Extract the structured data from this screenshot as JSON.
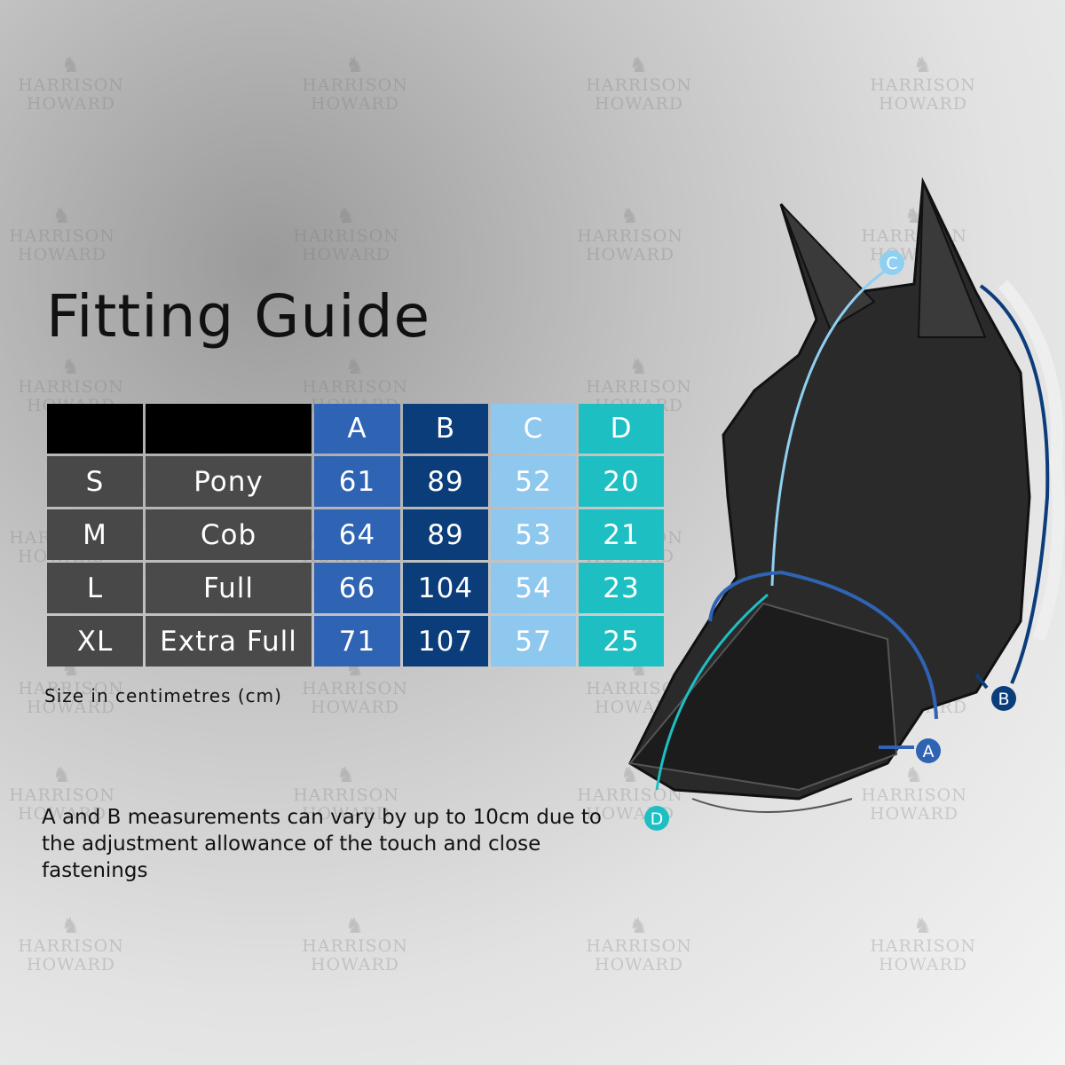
{
  "watermark": {
    "line1": "HARRISON",
    "line2": "HOWARD"
  },
  "title": "Fitting Guide",
  "table": {
    "headers": [
      "",
      "",
      "A",
      "B",
      "C",
      "D"
    ],
    "rows": [
      {
        "size": "S",
        "name": "Pony",
        "a": "61",
        "b": "89",
        "c": "52",
        "d": "20"
      },
      {
        "size": "M",
        "name": "Cob",
        "a": "64",
        "b": "89",
        "c": "53",
        "d": "21"
      },
      {
        "size": "L",
        "name": "Full",
        "a": "66",
        "b": "104",
        "c": "54",
        "d": "23"
      },
      {
        "size": "XL",
        "name": "Extra Full",
        "a": "71",
        "b": "107",
        "c": "57",
        "d": "25"
      }
    ]
  },
  "unit_note": "Size in centimetres (cm)",
  "footnote": "A and B measurements can vary by up to 10cm due to the adjustment allowance of the touch and close fastenings",
  "diagram_labels": {
    "a": "A",
    "b": "B",
    "c": "C",
    "d": "D"
  },
  "colors": {
    "a": "#2f63b3",
    "b": "#0c3d7b",
    "c": "#8fc8ee",
    "d": "#1ebfc3",
    "size_cell": "#4a4a4a",
    "header": "#000000"
  }
}
